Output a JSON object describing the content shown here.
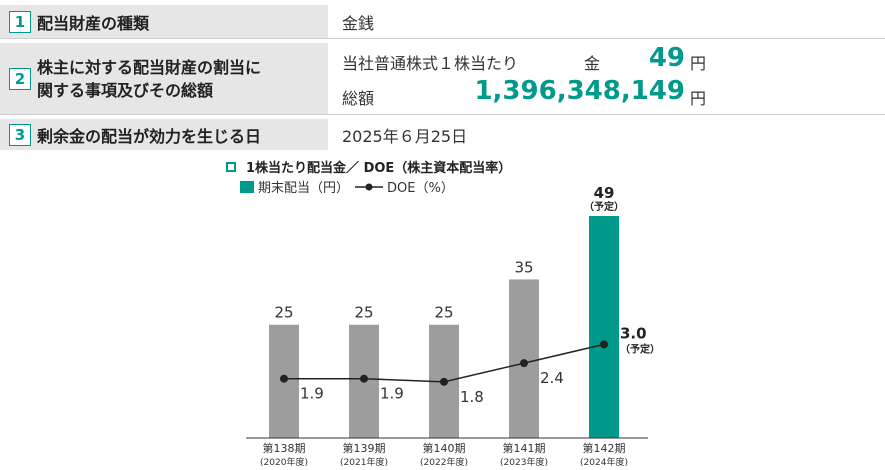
{
  "items": [
    {
      "num": "1",
      "label": "配当財産の種類",
      "value": "金銭"
    },
    {
      "num": "2",
      "label_line1": "株主に対する配当財産の割当に",
      "label_line2": "関する事項及びその総額",
      "per_share_label": "当社普通株式１株当たり",
      "per_share_prefix": "金",
      "per_share_amount": "49",
      "per_share_unit": "円",
      "total_label": "総額",
      "total_amount": "1,396,348,149",
      "total_unit": "円"
    },
    {
      "num": "3",
      "label": "剰余金の配当が効力を生じる日",
      "value": "2025年６月25日"
    }
  ],
  "chart_title": "1株当たり配当金／ DOE（株主資本配当率）",
  "legend": {
    "bar": "期末配当（円）",
    "line": "DOE（%）"
  },
  "colors": {
    "bar": "#9d9d9e",
    "bar_highlight": "#009a8c",
    "label_bg": "#e6e6e6",
    "accent": "#009a8c"
  },
  "chart_data": {
    "type": "bar",
    "categories": [
      "第138期",
      "第139期",
      "第140期",
      "第141期",
      "第142期"
    ],
    "category_years": [
      "(2020年度)",
      "(2021年度)",
      "(2022年度)",
      "(2023年度)",
      "(2024年度)"
    ],
    "series": [
      {
        "name": "期末配当（円）",
        "type": "bar",
        "values": [
          25,
          25,
          25,
          35,
          49
        ]
      },
      {
        "name": "DOE（%）",
        "type": "line",
        "values": [
          1.9,
          1.9,
          1.8,
          2.4,
          3.0
        ]
      }
    ],
    "bar_labels": [
      "25",
      "25",
      "25",
      "35",
      "49"
    ],
    "line_labels": [
      "1.9",
      "1.9",
      "1.8",
      "2.4",
      "3.0"
    ],
    "forecast_note": "（予定）",
    "highlight_index": 4,
    "ylim_bar": [
      0,
      60
    ],
    "ylim_line": [
      0,
      7
    ]
  }
}
